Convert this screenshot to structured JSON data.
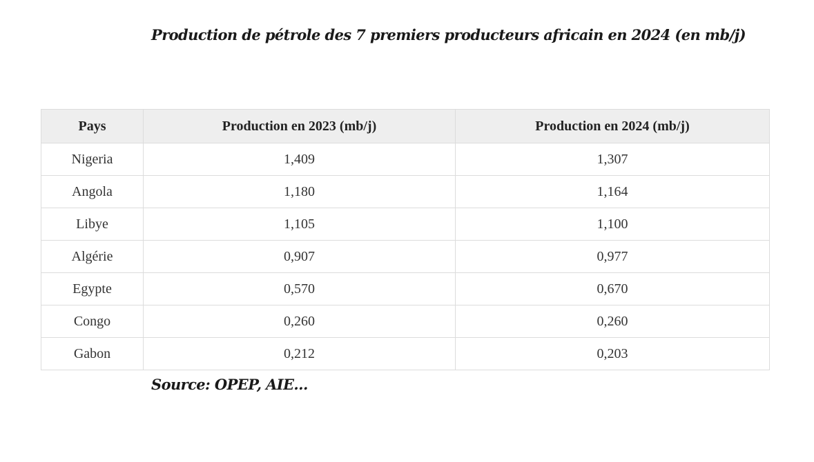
{
  "title": "Production de pétrole des 7 premiers producteurs africain en 2024 (en mb/j)",
  "table": {
    "headers": [
      "Pays",
      "Production en 2023 (mb/j)",
      "Production en 2024 (mb/j)"
    ],
    "rows": [
      [
        "Nigeria",
        "1,409",
        "1,307"
      ],
      [
        "Angola",
        "1,180",
        "1,164"
      ],
      [
        "Libye",
        "1,105",
        "1,100"
      ],
      [
        "Algérie",
        "0,907",
        "0,977"
      ],
      [
        "Egypte",
        "0,570",
        "0,670"
      ],
      [
        "Congo",
        "0,260",
        "0,260"
      ],
      [
        "Gabon",
        "0,212",
        "0,203"
      ]
    ]
  },
  "source": "Source: OPEP, AIE…",
  "colors": {
    "header_background": "#eeeeee",
    "border": "#dcdcdc",
    "text": "#222222"
  }
}
